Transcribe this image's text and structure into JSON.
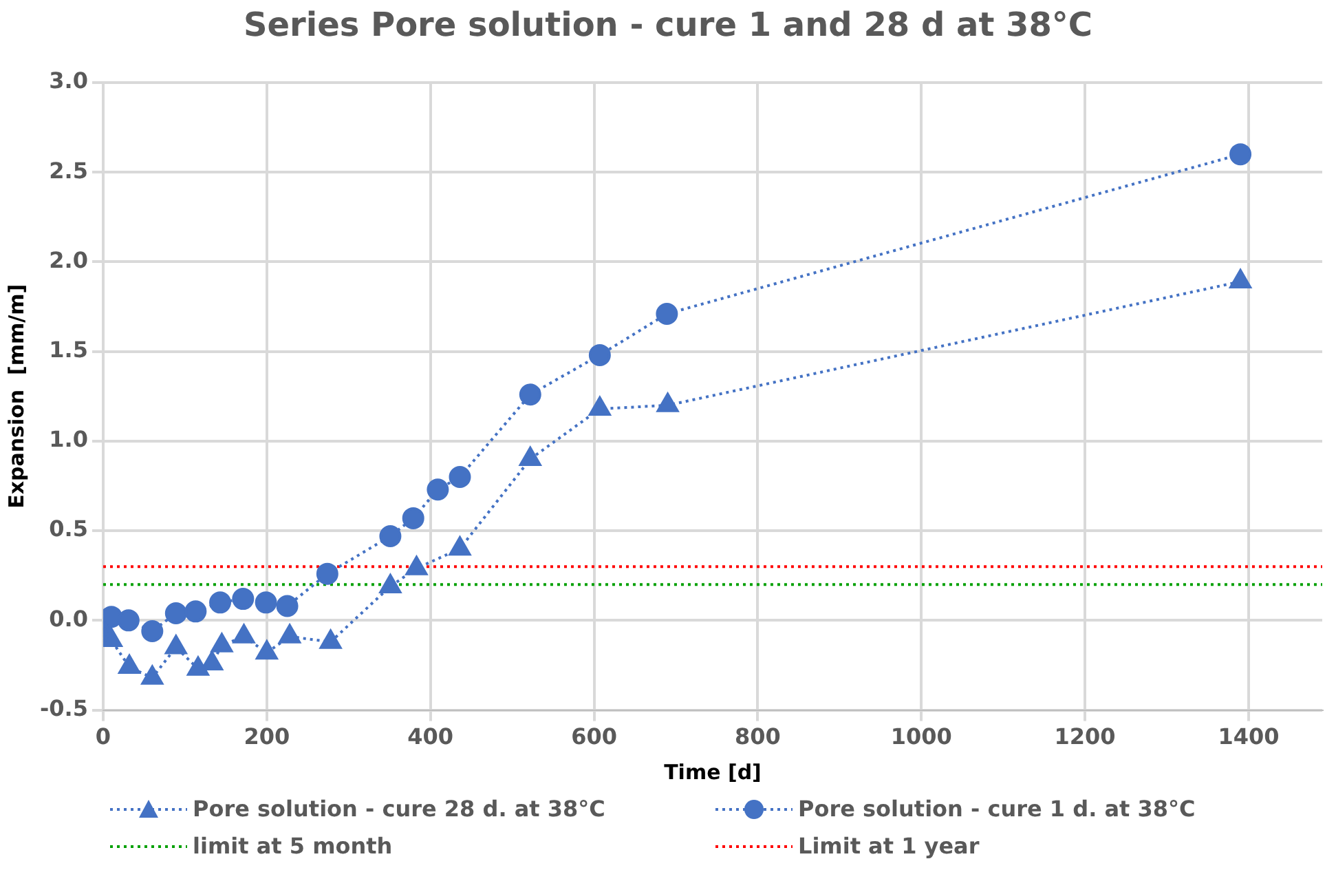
{
  "chart_data": {
    "type": "line",
    "title": "Series Pore solution - cure 1 and 28 d at 38°C",
    "xlabel": "Time [d]",
    "ylabel": "Expansion  [mm/m]",
    "xlim": [
      0,
      1490
    ],
    "xticks": [
      0,
      200,
      400,
      600,
      800,
      1000,
      1200,
      1400
    ],
    "ylim": [
      -0.5,
      3.0
    ],
    "yticks": [
      -0.5,
      {
        "value": 0,
        "label": "0.0"
      },
      0.5,
      {
        "value": 1,
        "label": "1.0"
      },
      1.5,
      {
        "value": 2,
        "label": "2.0"
      },
      2.5,
      {
        "value": 3,
        "label": "3.0"
      }
    ],
    "grid": true,
    "legend": "bottom",
    "line_style": "dotted",
    "series": [
      {
        "name": "Pore solution - cure 28 d. at 38°C",
        "color": "#4472c4",
        "marker": "triangle",
        "x": [
          0,
          2,
          10,
          32,
          60,
          89,
          116,
          133,
          145,
          172,
          200,
          228,
          278,
          351,
          383,
          436,
          522,
          607,
          690,
          1390
        ],
        "values": [
          -0.06,
          -0.08,
          -0.11,
          -0.26,
          -0.32,
          -0.15,
          -0.27,
          -0.24,
          -0.14,
          -0.09,
          -0.18,
          -0.09,
          -0.12,
          0.19,
          0.29,
          0.4,
          0.9,
          1.18,
          1.2,
          1.89
        ]
      },
      {
        "name": "Pore solution - cure 1 d. at 38°C",
        "color": "#4472c4",
        "marker": "circle",
        "x": [
          0,
          10,
          31,
          60,
          89,
          113,
          143,
          171,
          199,
          225,
          274,
          351,
          379,
          409,
          436,
          522,
          607,
          689,
          1390
        ],
        "values": [
          0.0,
          0.02,
          0.0,
          -0.06,
          0.04,
          0.05,
          0.1,
          0.12,
          0.1,
          0.08,
          0.26,
          0.47,
          0.57,
          0.73,
          0.8,
          1.26,
          1.48,
          1.71,
          2.6
        ]
      }
    ],
    "ref_lines": [
      {
        "axis": "y",
        "value": 0.2,
        "label": "limit at 5 month",
        "color": "#00a000",
        "line_style": "dotted"
      },
      {
        "axis": "y",
        "value": 0.3,
        "label": "Limit at 1 year",
        "color": "#ff0000",
        "line_style": "dotted"
      }
    ]
  }
}
